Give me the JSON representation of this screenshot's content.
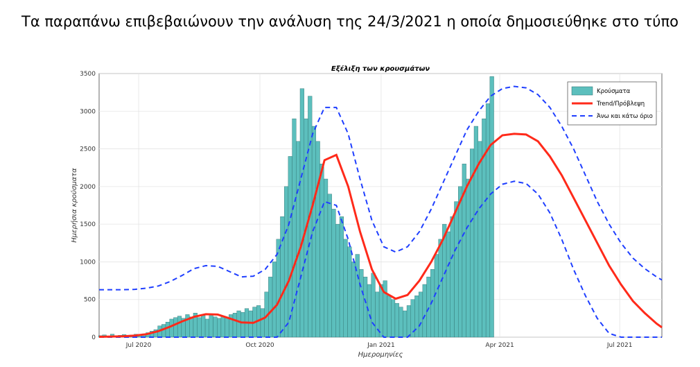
{
  "heading": "Τα παραπάνω επιβεβαιώνουν την ανάλυση της 24/3/2021 η οποία δημοσιεύθηκε στο τύπο",
  "chart_data": {
    "type": "bar",
    "title": "Εξέλιξη των κρουσμάτων",
    "xlabel": "Ημερομηνίες",
    "ylabel": "Ημερήσια κρούσματα",
    "xlim": [
      152,
      579
    ],
    "xticks": [
      {
        "value": 182,
        "label": "Jul 2020"
      },
      {
        "value": 274,
        "label": "Oct 2020"
      },
      {
        "value": 366,
        "label": "Jan 2021"
      },
      {
        "value": 456,
        "label": "Apr 2021"
      },
      {
        "value": 547,
        "label": "Jul 2021"
      }
    ],
    "ylim": [
      0,
      3500
    ],
    "yticks": [
      0,
      500,
      1000,
      1500,
      2000,
      2500,
      3000,
      3500
    ],
    "grid": true,
    "legend": "upper right",
    "bars": {
      "name": "Κρούσματα",
      "color": "#5cbfbd",
      "x": [
        153,
        156,
        159,
        162,
        165,
        168,
        171,
        174,
        177,
        180,
        183,
        186,
        189,
        192,
        195,
        198,
        201,
        204,
        207,
        210,
        213,
        216,
        219,
        222,
        225,
        228,
        231,
        234,
        237,
        240,
        243,
        246,
        249,
        252,
        255,
        258,
        261,
        264,
        267,
        270,
        273,
        276,
        279,
        282,
        285,
        288,
        291,
        294,
        297,
        300,
        303,
        306,
        309,
        312,
        315,
        318,
        321,
        324,
        327,
        330,
        333,
        336,
        339,
        342,
        345,
        348,
        351,
        354,
        357,
        360,
        363,
        366,
        369,
        372,
        375,
        378,
        381,
        384,
        387,
        390,
        393,
        396,
        399,
        402,
        405,
        408,
        411,
        414,
        417,
        420,
        423,
        426,
        429,
        432,
        435,
        438,
        441,
        444,
        447,
        450
      ],
      "values": [
        20,
        30,
        15,
        40,
        20,
        25,
        35,
        20,
        30,
        40,
        30,
        45,
        60,
        80,
        100,
        150,
        170,
        200,
        240,
        260,
        280,
        250,
        300,
        270,
        320,
        260,
        290,
        240,
        300,
        270,
        250,
        280,
        260,
        300,
        320,
        350,
        330,
        380,
        350,
        400,
        420,
        380,
        600,
        800,
        1000,
        1300,
        1600,
        2000,
        2400,
        2900,
        2600,
        3300,
        2900,
        3200,
        2800,
        2600,
        2300,
        2100,
        1900,
        1700,
        1500,
        1600,
        1300,
        1200,
        1000,
        1100,
        900,
        800,
        700,
        850,
        600,
        700,
        750,
        550,
        500,
        450,
        400,
        350,
        420,
        500,
        550,
        600,
        700,
        800,
        900,
        1100,
        1300,
        1500,
        1400,
        1600,
        1800,
        2000,
        2300,
        2100,
        2500,
        2800,
        2600,
        2900,
        3100,
        3460
      ]
    },
    "line_x": [
      152,
      161,
      170,
      179,
      188,
      197,
      206,
      215,
      224,
      233,
      242,
      251,
      260,
      269,
      278,
      287,
      296,
      305,
      314,
      323,
      332,
      341,
      350,
      359,
      368,
      377,
      386,
      395,
      404,
      413,
      422,
      431,
      440,
      449,
      458,
      467,
      476,
      485,
      494,
      503,
      512,
      521,
      530,
      539,
      548,
      557,
      566,
      575,
      579
    ],
    "trend": {
      "name": "Trend/Πρόβλεψη",
      "color": "#ff2a1a",
      "values": [
        5,
        8,
        12,
        20,
        40,
        80,
        140,
        210,
        270,
        305,
        300,
        250,
        195,
        190,
        260,
        430,
        750,
        1200,
        1750,
        2350,
        2420,
        2000,
        1400,
        900,
        600,
        510,
        560,
        750,
        1000,
        1300,
        1650,
        2000,
        2300,
        2550,
        2680,
        2700,
        2690,
        2600,
        2400,
        2150,
        1850,
        1550,
        1250,
        950,
        700,
        480,
        320,
        180,
        130
      ]
    },
    "bounds": {
      "name": "Άνω και κάτω όριο",
      "color": "#1f3fff",
      "upper": [
        630,
        630,
        630,
        635,
        650,
        680,
        740,
        820,
        910,
        950,
        940,
        870,
        800,
        810,
        900,
        1100,
        1500,
        2100,
        2700,
        3050,
        3050,
        2700,
        2100,
        1550,
        1200,
        1130,
        1200,
        1400,
        1700,
        2050,
        2400,
        2750,
        3000,
        3200,
        3300,
        3330,
        3310,
        3220,
        3050,
        2800,
        2500,
        2150,
        1800,
        1500,
        1250,
        1050,
        910,
        800,
        760
      ],
      "lower": [
        0,
        0,
        0,
        0,
        0,
        0,
        0,
        0,
        0,
        0,
        0,
        0,
        0,
        0,
        0,
        0,
        200,
        800,
        1400,
        1800,
        1750,
        1300,
        700,
        200,
        0,
        0,
        0,
        150,
        450,
        800,
        1150,
        1450,
        1700,
        1900,
        2030,
        2070,
        2040,
        1900,
        1650,
        1300,
        900,
        550,
        250,
        50,
        0,
        0,
        0,
        0,
        0
      ]
    }
  }
}
